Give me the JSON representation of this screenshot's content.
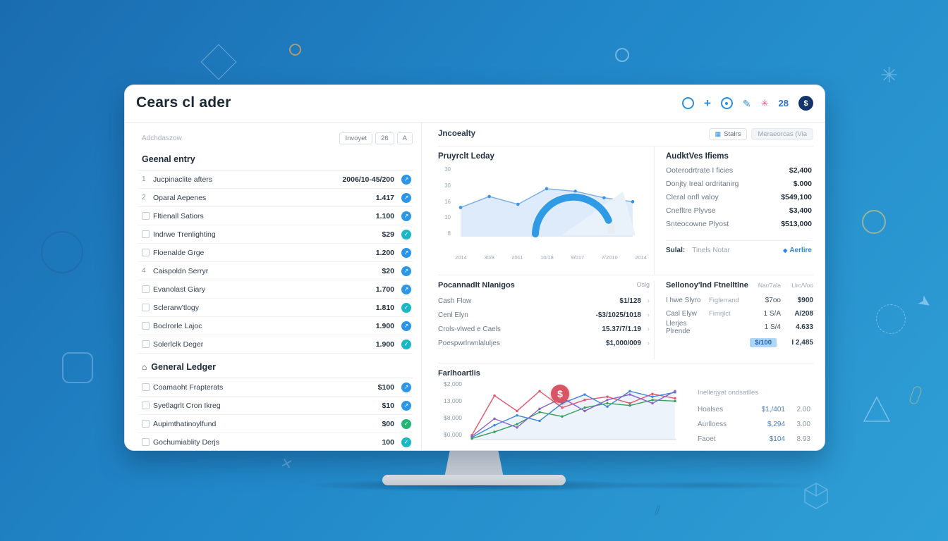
{
  "app": {
    "title": "Cears cl ader",
    "badge_count": "28",
    "avatar_symbol": "$"
  },
  "left": {
    "search_label": "Adchdaszow",
    "filters": [
      "Invoyet",
      "26",
      "A"
    ],
    "entries_title": "Geenal entry",
    "entries": [
      {
        "num": "1",
        "label": "Jucpinaclite afters",
        "value": "2006/10-45/200"
      },
      {
        "num": "2",
        "label": "Oparal Aepenes",
        "value": "1.417"
      },
      {
        "num": "",
        "label": "Fltienall Satiors",
        "value": "1.100"
      },
      {
        "num": "",
        "label": "Indrwe Trenlighting",
        "value": "$29"
      },
      {
        "num": "",
        "label": "Floenalde Grge",
        "value": "1.200"
      },
      {
        "num": "4",
        "label": "Caispoldn Serryr",
        "value": "$20"
      },
      {
        "num": "",
        "label": "Evanolast Giary",
        "value": "1.700"
      },
      {
        "num": "",
        "label": "Sclerarw'tlogy",
        "value": "1.810"
      },
      {
        "num": "",
        "label": "Boclrorle Lajoc",
        "value": "1.900"
      },
      {
        "num": "",
        "label": "Solerlclk Deger",
        "value": "1.900"
      }
    ],
    "ledger_title": "General Ledger",
    "ledger": [
      {
        "label": "Coamaoht Frapterats",
        "value": "$100"
      },
      {
        "label": "Syetlagrlt Cron Ikreg",
        "value": "$10"
      },
      {
        "label": "Aupimthatinoylfund",
        "value": "$00"
      },
      {
        "label": "Gochumiablity Derjs",
        "value": "100"
      }
    ]
  },
  "right": {
    "title": "Jncoealty",
    "actions": [
      "Stalrs",
      "Meraeorcas (Via"
    ],
    "audit": {
      "title": "AudktVes Ifiems",
      "rows": [
        {
          "label": "Ooterodrtrate I ficies",
          "value": "$2,400"
        },
        {
          "label": "Donjty Ireal ordritanirg",
          "value": "$.000"
        },
        {
          "label": "Cleral onfl valoy",
          "value": "$549,100"
        },
        {
          "label": "Cnefltre Plyvse",
          "value": "$3,400"
        },
        {
          "label": "Snteocowne Plyost",
          "value": "$513,000"
        }
      ],
      "footer_label": "Sulal:",
      "footer_text": "Tinels Notar",
      "footer_link": "Aerlire"
    },
    "table1": {
      "title": "Pocannadlt Nlanigos",
      "corner": "Oslg",
      "rows": [
        {
          "label": "Cash Flow",
          "value": "$1/128"
        },
        {
          "label": "Cenl Elyn",
          "value": "-$3/1025/1018"
        },
        {
          "label": "Crols-vlwed e Caels",
          "value": "15.37/7/1.19"
        },
        {
          "label": "Poespwrlrwnlaluljes",
          "value": "$1,000/009"
        }
      ]
    },
    "table2": {
      "title": "Sellonoy'lnd Ftnelltlne",
      "col1": "Nar/7ala",
      "col2": "Llrc/Voo",
      "rows": [
        {
          "label": "I hwe Slyro",
          "sub": "Figlerrand",
          "v1": "$7oo",
          "v2": "$900"
        },
        {
          "label": "Casl Elyw",
          "sub": "Fimrjlct",
          "v1": "1 S/A",
          "v2": "A/208"
        },
        {
          "label": "Llerjes Plrende",
          "sub": "",
          "v1": "1 S/4",
          "v2": "4.633"
        }
      ],
      "highlight_chip": "$/100",
      "highlight_value": "I 2,485"
    },
    "mini": {
      "title": "Inellerjyat ondsatlles",
      "rows": [
        {
          "label": "Hoalses",
          "v1": "$1,/401",
          "v2": "2.00"
        },
        {
          "label": "Aurlloess",
          "v1": "$,294",
          "v2": "3.00"
        },
        {
          "label": "Faoet",
          "v1": "$104",
          "v2": "8.93"
        }
      ]
    }
  },
  "chart_data": [
    {
      "type": "area",
      "title": "Pruyrclt Leday",
      "yticks": [
        "30",
        "30",
        "16",
        "10",
        "8"
      ],
      "xticks": [
        "2014",
        "30/8",
        "2011",
        "10/18",
        "9/017",
        "7/2010",
        "2014"
      ],
      "values": [
        45,
        62,
        50,
        74,
        70,
        60,
        54
      ],
      "ylim": [
        0,
        100
      ],
      "gauge_percent": 0.88
    },
    {
      "type": "line",
      "title": "Farlhoartlis",
      "yticks": [
        "$2,000",
        "13,000",
        "$8,000",
        "$0,000"
      ],
      "series": [
        {
          "name": "series-red",
          "color": "#e2556a",
          "values": [
            8,
            80,
            52,
            88,
            58,
            72,
            78,
            66,
            83,
            75
          ]
        },
        {
          "name": "series-blue",
          "color": "#3d86d8",
          "values": [
            4,
            26,
            44,
            34,
            66,
            82,
            60,
            88,
            78,
            86
          ]
        },
        {
          "name": "series-green",
          "color": "#35a05a",
          "values": [
            2,
            14,
            28,
            50,
            42,
            58,
            66,
            62,
            72,
            70
          ]
        },
        {
          "name": "series-purple",
          "color": "#8a63c8",
          "values": [
            6,
            38,
            22,
            56,
            76,
            52,
            72,
            82,
            66,
            88
          ]
        }
      ]
    }
  ],
  "colors": {
    "accent": "#2b8fe0",
    "link": "#2f86e0",
    "highlight_bg": "#aed6f7",
    "badge_red": "#d95565",
    "icon_blue": "#2b96e8",
    "icon_teal": "#19b8c4",
    "icon_green": "#22b573"
  }
}
